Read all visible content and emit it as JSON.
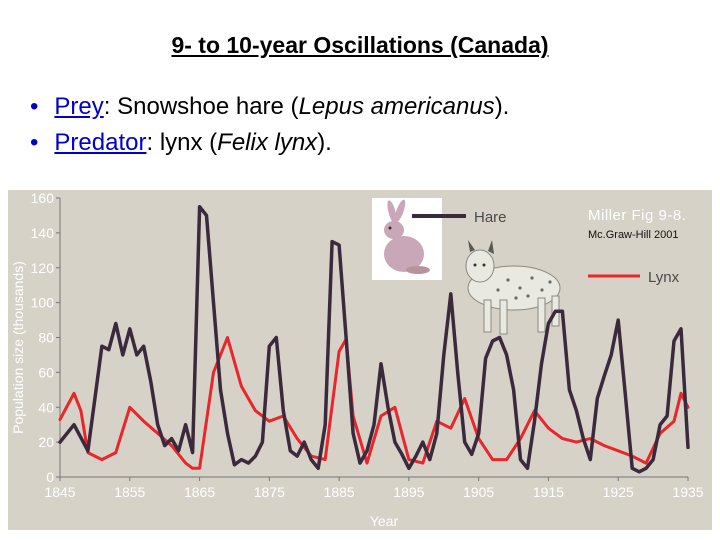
{
  "slide": {
    "title": "9- to 10-year Oscillations (Canada)",
    "bullets": [
      {
        "symbol": "•",
        "term": "Prey",
        "sep": ": ",
        "text": "Snowshoe hare (",
        "italic": "Lepus americanus",
        "end": ")."
      },
      {
        "symbol": "•",
        "term": "Predator",
        "sep": ": ",
        "text": "lynx (",
        "italic": "Felix lynx",
        "end": ")."
      }
    ]
  },
  "figure": {
    "credit_line1": "Miller Fig 9-8.",
    "credit_line2": "Mc.Graw-Hill 2001",
    "legend": [
      {
        "label": "Hare",
        "color": "#3a2a3c"
      },
      {
        "label": "Lynx",
        "color": "#e8262b"
      }
    ],
    "colors": {
      "background": "#d6d2c8",
      "hare": "#3a2a3c",
      "lynx": "#e8262b"
    }
  },
  "chart_data": {
    "type": "line",
    "xlabel": "Year",
    "ylabel": "Population size (thousands)",
    "xlim": [
      1845,
      1935
    ],
    "ylim": [
      0,
      160
    ],
    "x_ticks": [
      1845,
      1855,
      1865,
      1875,
      1885,
      1895,
      1905,
      1915,
      1925,
      1935
    ],
    "y_ticks": [
      0,
      20,
      40,
      60,
      80,
      100,
      120,
      140,
      160
    ],
    "grid": false,
    "legend_position": "top-right",
    "series": [
      {
        "name": "Hare",
        "color": "#3a2a3c",
        "x": [
          1845,
          1847,
          1849,
          1850,
          1851,
          1852,
          1853,
          1854,
          1855,
          1856,
          1857,
          1858,
          1859,
          1860,
          1861,
          1862,
          1863,
          1864,
          1865,
          1866,
          1867,
          1868,
          1869,
          1870,
          1871,
          1872,
          1873,
          1874,
          1875,
          1876,
          1877,
          1878,
          1879,
          1880,
          1881,
          1882,
          1883,
          1884,
          1885,
          1886,
          1887,
          1888,
          1889,
          1890,
          1891,
          1892,
          1893,
          1894,
          1895,
          1896,
          1897,
          1898,
          1899,
          1900,
          1901,
          1902,
          1903,
          1904,
          1905,
          1906,
          1907,
          1908,
          1909,
          1910,
          1911,
          1912,
          1913,
          1914,
          1915,
          1916,
          1917,
          1918,
          1919,
          1920,
          1921,
          1922,
          1923,
          1924,
          1925,
          1926,
          1927,
          1928,
          1929,
          1930,
          1931,
          1932,
          1933,
          1934,
          1935
        ],
        "y": [
          20,
          30,
          15,
          45,
          75,
          73,
          88,
          70,
          85,
          70,
          75,
          55,
          30,
          18,
          22,
          15,
          30,
          14,
          155,
          150,
          100,
          50,
          25,
          7,
          10,
          8,
          12,
          20,
          75,
          80,
          38,
          15,
          12,
          20,
          10,
          5,
          30,
          135,
          133,
          80,
          25,
          8,
          15,
          30,
          65,
          40,
          20,
          13,
          5,
          12,
          20,
          10,
          25,
          70,
          105,
          60,
          20,
          13,
          25,
          68,
          78,
          80,
          70,
          50,
          10,
          5,
          32,
          65,
          88,
          95,
          95,
          50,
          38,
          22,
          10,
          45,
          58,
          70,
          90,
          48,
          5,
          3,
          5,
          10,
          30,
          35,
          78,
          85,
          17
        ]
      },
      {
        "name": "Lynx",
        "color": "#e8262b",
        "x": [
          1845,
          1847,
          1848,
          1849,
          1851,
          1853,
          1855,
          1857,
          1859,
          1861,
          1863,
          1864,
          1865,
          1867,
          1869,
          1871,
          1873,
          1875,
          1877,
          1879,
          1881,
          1883,
          1885,
          1886,
          1887,
          1889,
          1891,
          1893,
          1895,
          1897,
          1899,
          1901,
          1903,
          1905,
          1907,
          1909,
          1911,
          1913,
          1915,
          1917,
          1919,
          1921,
          1923,
          1925,
          1927,
          1929,
          1931,
          1933,
          1934,
          1935
        ],
        "y": [
          33,
          48,
          38,
          14,
          10,
          14,
          40,
          32,
          25,
          18,
          8,
          5,
          5,
          60,
          80,
          52,
          38,
          32,
          35,
          22,
          12,
          10,
          72,
          79,
          35,
          8,
          35,
          40,
          10,
          8,
          32,
          28,
          45,
          22,
          10,
          10,
          22,
          38,
          28,
          22,
          20,
          22,
          18,
          15,
          12,
          8,
          25,
          32,
          48,
          40
        ]
      }
    ]
  }
}
